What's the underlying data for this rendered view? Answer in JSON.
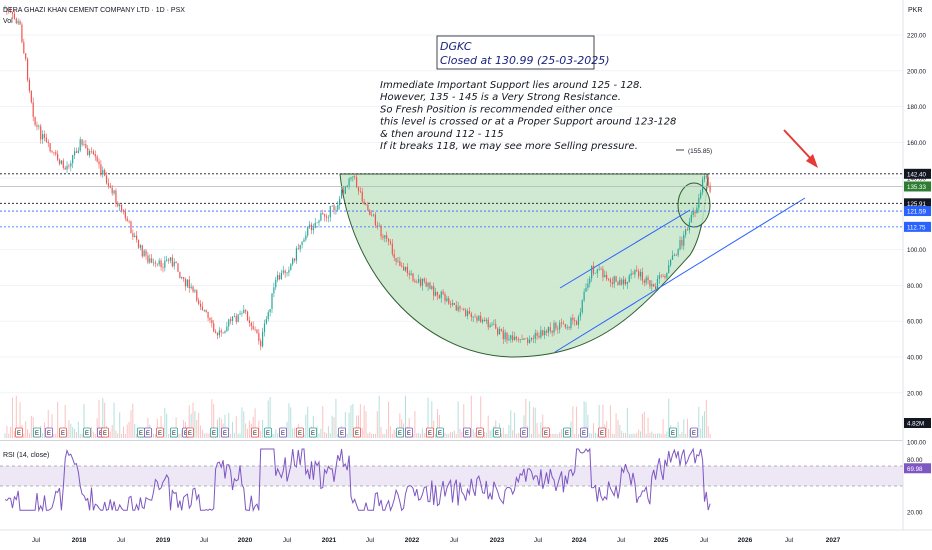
{
  "header": {
    "symbol_title": "DERA GHAZI KHAN CEMENT COMPANY LTD · 1D · PSX",
    "volume_label": "Vol",
    "currency": "PKR",
    "rsi_label": "RSI (14, close)"
  },
  "annotation": {
    "ticker": "DGKC",
    "closed": "Closed at 130.99 (25-03-2025)",
    "lines": [
      "Immediate Important Support lies around 125 - 128.",
      "However, 135 - 145 is a Very Strong Resistance.",
      "So Fresh Position is recommended either once",
      "this level is crossed or at a Proper Support around 123-128",
      "& then around 112 - 115",
      "If it breaks 118, we may see more Selling pressure."
    ],
    "target_label": "(155.85)"
  },
  "price_axis": {
    "ticks": [
      "220.00",
      "200.00",
      "180.00",
      "160.00",
      "140.00",
      "100.00",
      "80.00",
      "60.00",
      "40.00",
      "20.00"
    ],
    "tick_values": [
      220,
      200,
      180,
      160,
      140,
      100,
      80,
      60,
      40,
      20
    ],
    "levels": [
      {
        "label": "142.40",
        "value": 142.4,
        "style": "dotted",
        "bg": "#131722"
      },
      {
        "label": "135.33",
        "value": 135.33,
        "style": "solid",
        "bg": "#2e7d32"
      },
      {
        "label": "125.91",
        "value": 125.91,
        "style": "dotted",
        "bg": "#131722"
      },
      {
        "label": "121.59",
        "value": 121.59,
        "style": "dotted",
        "bg": "#2962ff"
      },
      {
        "label": "112.75",
        "value": 112.75,
        "style": "dotted",
        "bg": "#2962ff"
      }
    ],
    "volume_label": "4.82M"
  },
  "rsi_axis": {
    "ticks": [
      "100.00",
      "80.00",
      "20.00"
    ],
    "tick_values": [
      100,
      80,
      20
    ],
    "current": "69.98",
    "current_value": 69.98
  },
  "time_axis": [
    "Jul",
    "2018",
    "Jul",
    "2019",
    "Jul",
    "2020",
    "Jul",
    "2021",
    "Jul",
    "2022",
    "Jul",
    "2023",
    "Jul",
    "2024",
    "Jul",
    "2025",
    "Jul",
    "2026",
    "Jul",
    "2027"
  ],
  "event_markers": [
    "E",
    "E",
    "E",
    "E",
    "E",
    "E",
    "E",
    "E",
    "E",
    "E",
    "E",
    "E",
    "E",
    "E",
    "E",
    "E",
    "E",
    "E",
    "E",
    "E",
    "E",
    "E",
    "E",
    "E",
    "E",
    "E",
    "E",
    "E",
    "E",
    "E",
    "E",
    "E",
    "E",
    "E",
    "E",
    "E"
  ],
  "colors": {
    "up": "#26a69a",
    "down": "#ef5350",
    "rsi": "#7e57c2",
    "cup_fill": "#c8e6c9",
    "channel": "#2962ff",
    "arrow": "#e53935"
  },
  "chart_data": {
    "type": "candlestick",
    "symbol": "DGKC",
    "title": "DERA GHAZI KHAN CEMENT COMPANY LTD · 1D · PSX",
    "x_range": [
      "2017-05",
      "2027-04"
    ],
    "ylim": [
      0,
      240
    ],
    "y_ticks": [
      20,
      40,
      60,
      80,
      100,
      140,
      160,
      180,
      200,
      220
    ],
    "close_path": [
      [
        "2017-05",
        235
      ],
      [
        "2017-07",
        225
      ],
      [
        "2017-09",
        170
      ],
      [
        "2017-11",
        155
      ],
      [
        "2018-01",
        145
      ],
      [
        "2018-03",
        160
      ],
      [
        "2018-05",
        150
      ],
      [
        "2018-07",
        135
      ],
      [
        "2018-09",
        118
      ],
      [
        "2018-11",
        100
      ],
      [
        "2019-01",
        90
      ],
      [
        "2019-03",
        95
      ],
      [
        "2019-05",
        82
      ],
      [
        "2019-07",
        70
      ],
      [
        "2019-09",
        52
      ],
      [
        "2019-11",
        60
      ],
      [
        "2020-01",
        65
      ],
      [
        "2020-03",
        48
      ],
      [
        "2020-05",
        82
      ],
      [
        "2020-07",
        92
      ],
      [
        "2020-09",
        110
      ],
      [
        "2020-11",
        118
      ],
      [
        "2021-01",
        124
      ],
      [
        "2021-03",
        143
      ],
      [
        "2021-05",
        125
      ],
      [
        "2021-07",
        110
      ],
      [
        "2021-09",
        95
      ],
      [
        "2021-11",
        85
      ],
      [
        "2022-01",
        80
      ],
      [
        "2022-03",
        74
      ],
      [
        "2022-05",
        68
      ],
      [
        "2022-07",
        62
      ],
      [
        "2022-09",
        60
      ],
      [
        "2022-11",
        53
      ],
      [
        "2023-01",
        48
      ],
      [
        "2023-03",
        50
      ],
      [
        "2023-05",
        55
      ],
      [
        "2023-07",
        58
      ],
      [
        "2023-09",
        60
      ],
      [
        "2023-11",
        90
      ],
      [
        "2024-01",
        85
      ],
      [
        "2024-03",
        80
      ],
      [
        "2024-05",
        88
      ],
      [
        "2024-07",
        78
      ],
      [
        "2024-09",
        88
      ],
      [
        "2024-11",
        105
      ],
      [
        "2025-01",
        125
      ],
      [
        "2025-02",
        142
      ],
      [
        "2025-03",
        131
      ]
    ],
    "last_close": 130.99,
    "last_close_date": "25-03-2025",
    "horizontal_levels": [
      142.4,
      135.33,
      125.91,
      121.59,
      112.75
    ],
    "projected_target": 155.85,
    "volume_last": "4.82M",
    "rsi": {
      "period": 14,
      "source": "close",
      "current": 69.98,
      "band": [
        30,
        70
      ],
      "ylim": [
        0,
        100
      ]
    },
    "patterns": [
      "cup-and-handle",
      "ascending channel"
    ]
  }
}
